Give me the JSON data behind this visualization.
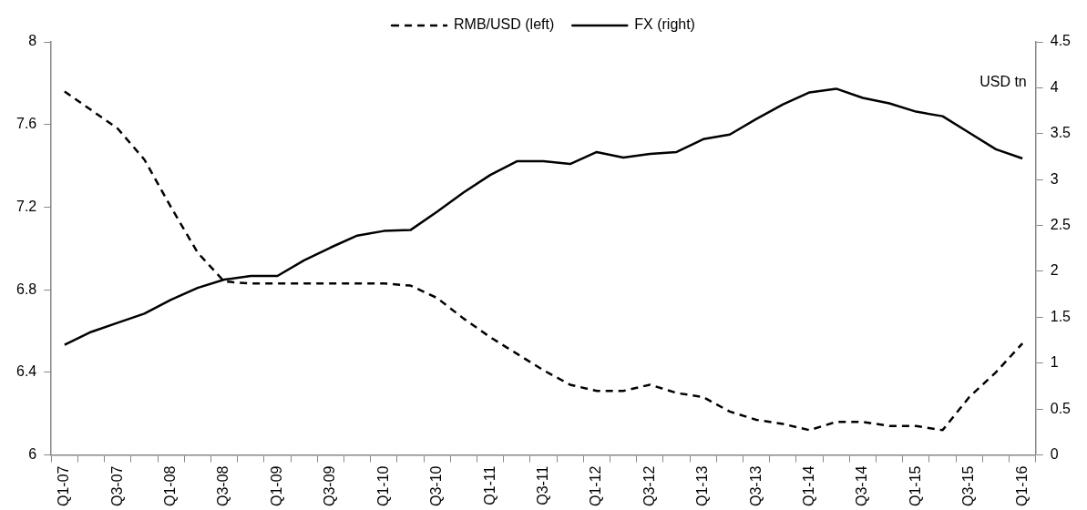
{
  "chart_data": {
    "type": "line",
    "y2label": "USD tn",
    "categories": [
      "Q1-07",
      null,
      "Q3-07",
      null,
      "Q1-08",
      null,
      "Q3-08",
      null,
      "Q1-09",
      null,
      "Q3-09",
      null,
      "Q1-10",
      null,
      "Q3-10",
      null,
      "Q1-11",
      null,
      "Q3-11",
      null,
      "Q1-12",
      null,
      "Q3-12",
      null,
      "Q1-13",
      null,
      "Q3-13",
      null,
      "Q1-14",
      null,
      "Q3-14",
      null,
      "Q1-15",
      null,
      "Q3-15",
      null,
      "Q1-16"
    ],
    "series": [
      {
        "name": "RMB/USD (left)",
        "color": "#000000",
        "line_style": "dashed",
        "values": [
          7.76,
          7.67,
          7.58,
          7.43,
          7.2,
          6.98,
          6.84,
          6.83,
          6.83,
          6.83,
          6.83,
          6.83,
          6.83,
          6.82,
          6.76,
          6.66,
          6.57,
          6.49,
          6.41,
          6.34,
          6.31,
          6.31,
          6.34,
          6.3,
          6.28,
          6.21,
          6.17,
          6.15,
          6.12,
          6.16,
          6.16,
          6.14,
          6.14,
          6.12,
          6.28,
          6.4,
          6.54
        ]
      },
      {
        "name": "FX (right)",
        "color": "#000000",
        "line_style": "solid",
        "axis": "y2",
        "values": [
          1.2,
          1.34,
          1.44,
          1.54,
          1.69,
          1.82,
          1.91,
          1.95,
          1.95,
          2.12,
          2.26,
          2.39,
          2.44,
          2.45,
          2.65,
          2.86,
          3.05,
          3.2,
          3.2,
          3.17,
          3.3,
          3.24,
          3.28,
          3.3,
          3.44,
          3.49,
          3.66,
          3.82,
          3.95,
          3.99,
          3.89,
          3.83,
          3.74,
          3.69,
          3.51,
          3.33,
          3.23
        ]
      }
    ],
    "ylim": [
      6,
      8
    ],
    "yticks": [
      6,
      6.4,
      6.8,
      7.2,
      7.6,
      8
    ],
    "y2lim": [
      0,
      4.5
    ],
    "y2ticks": [
      0,
      0.5,
      1,
      1.5,
      2,
      2.5,
      3,
      3.5,
      4,
      4.5
    ],
    "grid": false,
    "legend": "top",
    "marker": "none"
  }
}
